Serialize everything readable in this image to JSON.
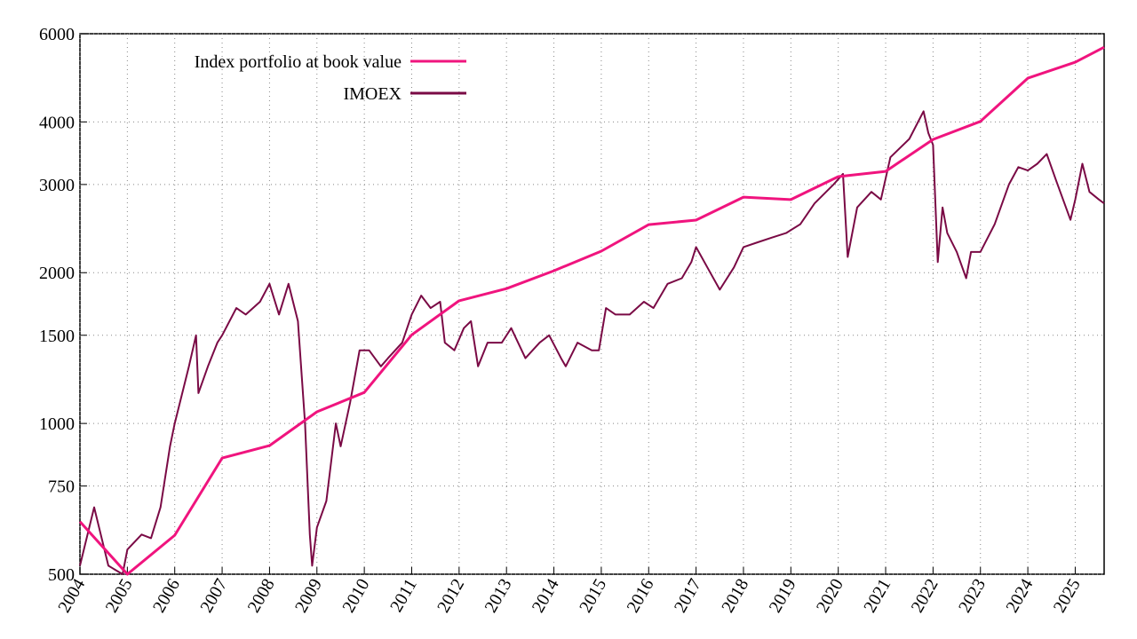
{
  "chart_data": {
    "type": "line",
    "log_y": true,
    "grid": true,
    "legend": "upper left",
    "xlim": [
      2004,
      2025.61
    ],
    "ylim": [
      500,
      6000
    ],
    "xticks": [
      2004,
      2005,
      2006,
      2007,
      2008,
      2009,
      2010,
      2011,
      2012,
      2013,
      2014,
      2015,
      2016,
      2017,
      2018,
      2019,
      2020,
      2021,
      2022,
      2023,
      2024,
      2025
    ],
    "yticks": [
      500,
      750,
      1000,
      1500,
      2000,
      3000,
      4000,
      6000
    ],
    "series": [
      {
        "name": "Index portfolio at book value",
        "color": "#f0147e",
        "x": [
          2004,
          2005,
          2006,
          2007,
          2008,
          2009,
          2010,
          2011,
          2012,
          2013,
          2014,
          2015,
          2016,
          2017,
          2018,
          2019,
          2020,
          2021,
          2022,
          2023,
          2024,
          2025,
          2025.61
        ],
        "values": [
          637,
          500,
          598,
          853,
          903,
          1055,
          1153,
          1503,
          1758,
          1859,
          2018,
          2208,
          2495,
          2547,
          2831,
          2799,
          3111,
          3186,
          3690,
          4009,
          4890,
          5264,
          5640
        ]
      },
      {
        "name": "IMOEX",
        "color": "#7a0a45",
        "x": [
          2004,
          2004.3,
          2004.6,
          2004.9,
          2005,
          2005.3,
          2005.5,
          2005.7,
          2005.9,
          2006,
          2006.3,
          2006.45,
          2006.5,
          2006.7,
          2006.9,
          2007,
          2007.3,
          2007.5,
          2007.8,
          2008,
          2008.2,
          2008.4,
          2008.6,
          2008.75,
          2008.85,
          2008.9,
          2009,
          2009.2,
          2009.4,
          2009.5,
          2009.7,
          2009.9,
          2010.1,
          2010.35,
          2010.5,
          2010.8,
          2011,
          2011.2,
          2011.4,
          2011.6,
          2011.7,
          2011.9,
          2012.1,
          2012.25,
          2012.4,
          2012.6,
          2012.9,
          2013.1,
          2013.4,
          2013.7,
          2013.9,
          2014.15,
          2014.25,
          2014.5,
          2014.8,
          2014.95,
          2015.1,
          2015.3,
          2015.6,
          2015.9,
          2016.1,
          2016.4,
          2016.7,
          2016.9,
          2017,
          2017.3,
          2017.5,
          2017.8,
          2018,
          2018.3,
          2018.6,
          2018.9,
          2019.2,
          2019.5,
          2019.9,
          2020.1,
          2020.2,
          2020.4,
          2020.7,
          2020.9,
          2021.1,
          2021.5,
          2021.8,
          2021.9,
          2022,
          2022.1,
          2022.2,
          2022.3,
          2022.5,
          2022.7,
          2022.8,
          2023,
          2023.3,
          2023.6,
          2023.8,
          2024,
          2024.2,
          2024.4,
          2024.6,
          2024.9,
          2025,
          2025.15,
          2025.3,
          2025.5,
          2025.61
        ],
        "values": [
          520,
          680,
          520,
          500,
          560,
          600,
          590,
          680,
          900,
          1000,
          1300,
          1500,
          1150,
          1300,
          1450,
          1500,
          1700,
          1650,
          1750,
          1900,
          1650,
          1900,
          1600,
          1000,
          600,
          520,
          620,
          700,
          1000,
          900,
          1100,
          1400,
          1400,
          1300,
          1350,
          1450,
          1650,
          1800,
          1700,
          1750,
          1450,
          1400,
          1550,
          1600,
          1300,
          1450,
          1450,
          1550,
          1350,
          1450,
          1500,
          1350,
          1300,
          1450,
          1400,
          1400,
          1700,
          1650,
          1650,
          1750,
          1700,
          1900,
          1950,
          2100,
          2250,
          2000,
          1850,
          2050,
          2250,
          2300,
          2350,
          2400,
          2500,
          2750,
          3000,
          3150,
          2150,
          2700,
          2900,
          2800,
          3400,
          3700,
          4200,
          3800,
          3600,
          2100,
          2700,
          2400,
          2200,
          1950,
          2200,
          2200,
          2500,
          3000,
          3250,
          3200,
          3300,
          3450,
          3050,
          2550,
          2800,
          3300,
          2900,
          2800,
          2750
        ]
      }
    ]
  }
}
